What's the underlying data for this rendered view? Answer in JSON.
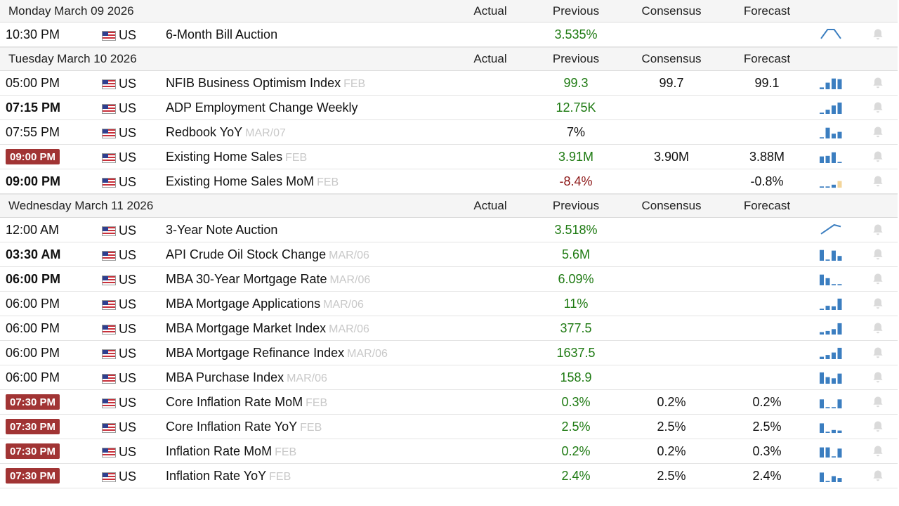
{
  "columns": {
    "actual": "Actual",
    "previous": "Previous",
    "consensus": "Consensus",
    "forecast": "Forecast"
  },
  "colors": {
    "positive": "#1e7a12",
    "negative": "#8b1414",
    "badge": "#a13434",
    "spark": "#3b7ec0",
    "spark_forecast": "#f3d59a"
  },
  "days": [
    {
      "date": "Monday March 09 2026",
      "events": [
        {
          "time": "10:30 PM",
          "style": "normal",
          "country": "US",
          "event": "6-Month Bill Auction",
          "ref": "",
          "actual": "",
          "previous": "3.535%",
          "previous_tone": "pos",
          "consensus": "",
          "forecast": "",
          "spark": {
            "type": "line",
            "values": [
              0.2,
              1,
              1,
              0.2
            ]
          }
        }
      ]
    },
    {
      "date": "Tuesday March 10 2026",
      "events": [
        {
          "time": "05:00 PM",
          "style": "normal",
          "country": "US",
          "event": "NFIB Business Optimism Index",
          "ref": "FEB",
          "actual": "",
          "previous": "99.3",
          "previous_tone": "pos",
          "consensus": "99.7",
          "forecast": "99.1",
          "spark": {
            "type": "bar",
            "values": [
              0.15,
              0.55,
              0.9,
              0.85
            ],
            "forecast_last": false
          }
        },
        {
          "time": "07:15 PM",
          "style": "bold",
          "country": "US",
          "event": "ADP Employment Change Weekly",
          "ref": "",
          "actual": "",
          "previous": "12.75K",
          "previous_tone": "pos",
          "consensus": "",
          "forecast": "",
          "spark": {
            "type": "bar",
            "values": [
              0.1,
              0.35,
              0.7,
              0.95
            ],
            "forecast_last": false
          }
        },
        {
          "time": "07:55 PM",
          "style": "normal",
          "country": "US",
          "event": "Redbook YoY",
          "ref": "MAR/07",
          "actual": "",
          "previous": "7%",
          "previous_tone": "neutral",
          "consensus": "",
          "forecast": "",
          "spark": {
            "type": "bar",
            "values": [
              0.1,
              0.9,
              0.4,
              0.55
            ],
            "forecast_last": false
          }
        },
        {
          "time": "09:00 PM",
          "style": "badge",
          "country": "US",
          "event": "Existing Home Sales",
          "ref": "FEB",
          "actual": "",
          "previous": "3.91M",
          "previous_tone": "pos",
          "consensus": "3.90M",
          "forecast": "3.88M",
          "spark": {
            "type": "bar",
            "values": [
              0.55,
              0.6,
              0.9,
              0.1
            ],
            "forecast_last": false
          }
        },
        {
          "time": "09:00 PM",
          "style": "bold",
          "country": "US",
          "event": "Existing Home Sales MoM",
          "ref": "FEB",
          "actual": "",
          "previous": "-8.4%",
          "previous_tone": "neg",
          "consensus": "",
          "forecast": "-0.8%",
          "spark": {
            "type": "bar",
            "values": [
              0.1,
              0.1,
              0.25,
              0.55
            ],
            "forecast_last": true
          }
        }
      ]
    },
    {
      "date": "Wednesday March 11 2026",
      "events": [
        {
          "time": "12:00 AM",
          "style": "normal",
          "country": "US",
          "event": "3-Year Note Auction",
          "ref": "",
          "actual": "",
          "previous": "3.518%",
          "previous_tone": "pos",
          "consensus": "",
          "forecast": "",
          "spark": {
            "type": "line",
            "values": [
              0.2,
              0.6,
              1,
              0.85
            ]
          }
        },
        {
          "time": "03:30 AM",
          "style": "bold",
          "country": "US",
          "event": "API Crude Oil Stock Change",
          "ref": "MAR/06",
          "actual": "",
          "previous": "5.6M",
          "previous_tone": "pos",
          "consensus": "",
          "forecast": "",
          "spark": {
            "type": "bar",
            "values": [
              0.9,
              0.1,
              0.85,
              0.4
            ],
            "forecast_last": false
          }
        },
        {
          "time": "06:00 PM",
          "style": "bold",
          "country": "US",
          "event": "MBA 30-Year Mortgage Rate",
          "ref": "MAR/06",
          "actual": "",
          "previous": "6.09%",
          "previous_tone": "pos",
          "consensus": "",
          "forecast": "",
          "spark": {
            "type": "bar",
            "values": [
              0.9,
              0.6,
              0.1,
              0.1
            ],
            "forecast_last": false
          }
        },
        {
          "time": "06:00 PM",
          "style": "normal",
          "country": "US",
          "event": "MBA Mortgage Applications",
          "ref": "MAR/06",
          "actual": "",
          "previous": "11%",
          "previous_tone": "pos",
          "consensus": "",
          "forecast": "",
          "spark": {
            "type": "bar",
            "values": [
              0.1,
              0.35,
              0.3,
              0.95
            ],
            "forecast_last": false
          }
        },
        {
          "time": "06:00 PM",
          "style": "normal",
          "country": "US",
          "event": "MBA Mortgage Market Index",
          "ref": "MAR/06",
          "actual": "",
          "previous": "377.5",
          "previous_tone": "pos",
          "consensus": "",
          "forecast": "",
          "spark": {
            "type": "bar",
            "values": [
              0.2,
              0.3,
              0.45,
              0.95
            ],
            "forecast_last": false
          }
        },
        {
          "time": "06:00 PM",
          "style": "normal",
          "country": "US",
          "event": "MBA Mortgage Refinance Index",
          "ref": "MAR/06",
          "actual": "",
          "previous": "1637.5",
          "previous_tone": "pos",
          "consensus": "",
          "forecast": "",
          "spark": {
            "type": "bar",
            "values": [
              0.2,
              0.35,
              0.55,
              0.95
            ],
            "forecast_last": false
          }
        },
        {
          "time": "06:00 PM",
          "style": "normal",
          "country": "US",
          "event": "MBA Purchase Index",
          "ref": "MAR/06",
          "actual": "",
          "previous": "158.9",
          "previous_tone": "pos",
          "consensus": "",
          "forecast": "",
          "spark": {
            "type": "bar",
            "values": [
              0.95,
              0.55,
              0.45,
              0.85
            ],
            "forecast_last": false
          }
        },
        {
          "time": "07:30 PM",
          "style": "badge",
          "country": "US",
          "event": "Core Inflation Rate MoM",
          "ref": "FEB",
          "actual": "",
          "previous": "0.3%",
          "previous_tone": "pos",
          "consensus": "0.2%",
          "forecast": "0.2%",
          "spark": {
            "type": "bar",
            "values": [
              0.75,
              0.1,
              0.1,
              0.75
            ],
            "forecast_last": false
          }
        },
        {
          "time": "07:30 PM",
          "style": "badge",
          "country": "US",
          "event": "Core Inflation Rate YoY",
          "ref": "FEB",
          "actual": "",
          "previous": "2.5%",
          "previous_tone": "pos",
          "consensus": "2.5%",
          "forecast": "2.5%",
          "spark": {
            "type": "bar",
            "values": [
              0.8,
              0.1,
              0.25,
              0.2
            ],
            "forecast_last": false
          }
        },
        {
          "time": "07:30 PM",
          "style": "badge",
          "country": "US",
          "event": "Inflation Rate MoM",
          "ref": "FEB",
          "actual": "",
          "previous": "0.2%",
          "previous_tone": "pos",
          "consensus": "0.2%",
          "forecast": "0.3%",
          "spark": {
            "type": "bar",
            "values": [
              0.85,
              0.85,
              0.1,
              0.75
            ],
            "forecast_last": false
          }
        },
        {
          "time": "07:30 PM",
          "style": "badge",
          "country": "US",
          "event": "Inflation Rate YoY",
          "ref": "FEB",
          "actual": "",
          "previous": "2.4%",
          "previous_tone": "pos",
          "consensus": "2.5%",
          "forecast": "2.4%",
          "spark": {
            "type": "bar",
            "values": [
              0.8,
              0.1,
              0.5,
              0.35
            ],
            "forecast_last": false
          }
        }
      ]
    }
  ]
}
